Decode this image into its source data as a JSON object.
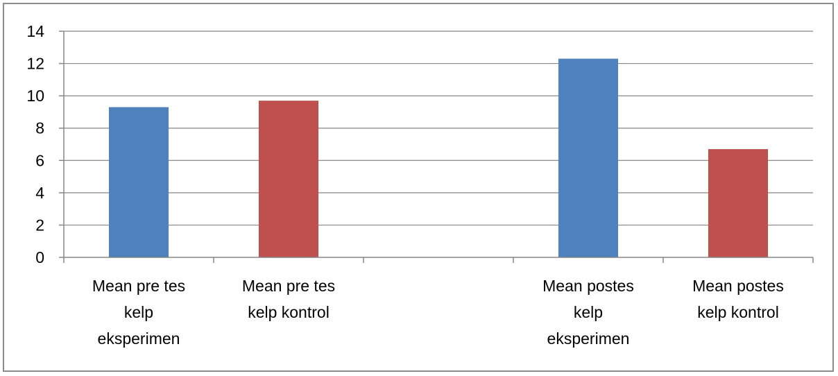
{
  "chart_data": {
    "type": "bar",
    "categories": [
      [
        "Mean pre tes",
        "kelp",
        "eksperimen"
      ],
      [
        "Mean pre tes",
        "kelp kontrol"
      ],
      [],
      [
        "Mean postes",
        "kelp",
        "eksperimen"
      ],
      [
        "Mean  postes",
        "kelp kontrol"
      ]
    ],
    "values": [
      9.3,
      9.7,
      null,
      12.3,
      6.7
    ],
    "bar_colors": [
      "#4f81bd",
      "#c0504d",
      null,
      "#4f81bd",
      "#c0504d"
    ],
    "ylim": [
      0,
      14
    ],
    "yticks": [
      "0",
      "2",
      "4",
      "6",
      "8",
      "10",
      "12",
      "14"
    ],
    "grid": true,
    "gridline_color": "#868686",
    "axis_color": "#868686",
    "title": "",
    "xlabel": "",
    "ylabel": ""
  }
}
